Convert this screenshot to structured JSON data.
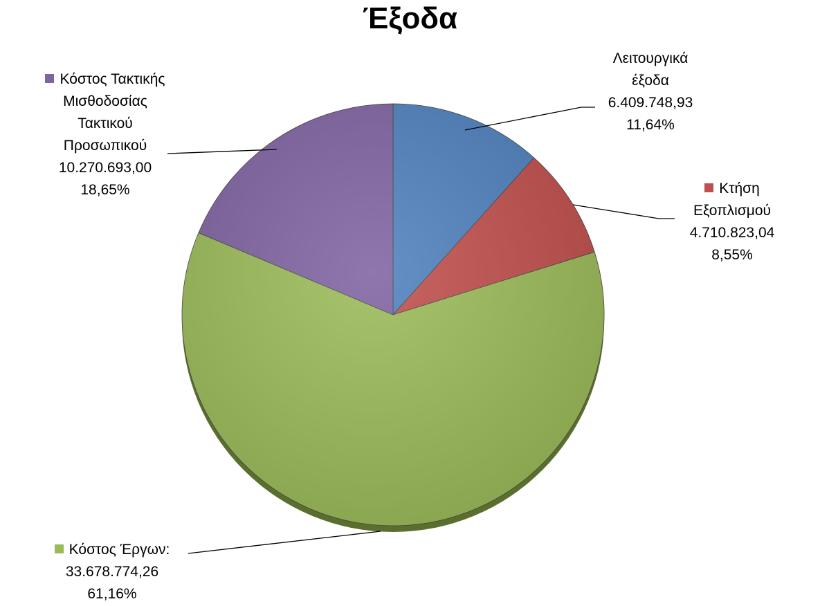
{
  "chart_data": {
    "type": "pie",
    "title": "Έξοδα",
    "categories": [
      "Λειτουργικά έξοδα",
      "Κτήση Εξοπλισμού",
      "Κόστος Έργων:",
      "Κόστος Τακτικής Μισθοδοσίας Τακτικού Προσωπικού"
    ],
    "values": [
      6409748.93,
      4710823.04,
      33678774.26,
      10270693.0
    ],
    "value_labels": [
      "6.409.748,93",
      "4.710.823,04",
      "33.678.774,26",
      "10.270.693,00"
    ],
    "percents": [
      11.64,
      8.55,
      61.16,
      18.65
    ],
    "percent_labels": [
      "11,64%",
      "8,55%",
      "61,16%",
      "18,65%"
    ],
    "colors": [
      "#4f81bd",
      "#c0504d",
      "#9bbb59",
      "#8064a2"
    ]
  }
}
